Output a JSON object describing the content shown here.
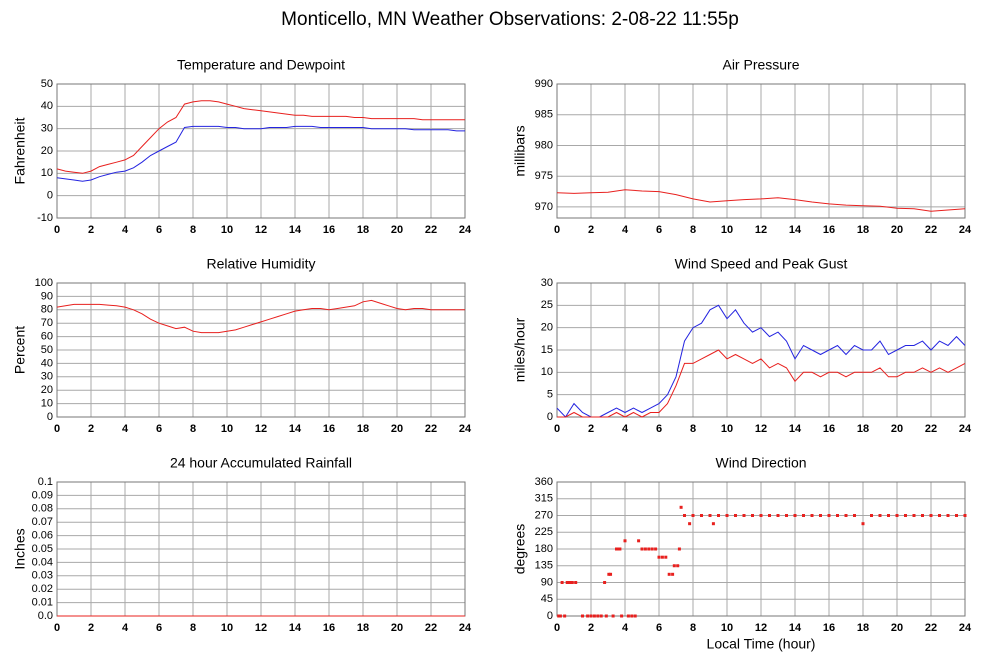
{
  "title": "Monticello, MN Weather Observations: 2-08-22 11:55p",
  "chart_data": [
    {
      "type": "line",
      "title": "Temperature and Dewpoint",
      "ylabel": "Fahrenheit",
      "xlim": [
        0,
        24
      ],
      "xticks": [
        0,
        2,
        4,
        6,
        8,
        10,
        12,
        14,
        16,
        18,
        20,
        22,
        24
      ],
      "ylim": [
        -10,
        50
      ],
      "yticks": [
        -10,
        0,
        10,
        20,
        30,
        40,
        50
      ],
      "grid": true,
      "x": [
        0,
        0.5,
        1,
        1.5,
        2,
        2.5,
        3,
        3.5,
        4,
        4.5,
        5,
        5.5,
        6,
        6.5,
        7,
        7.5,
        8,
        8.5,
        9,
        9.5,
        10,
        10.5,
        11,
        11.5,
        12,
        12.5,
        13,
        13.5,
        14,
        14.5,
        15,
        15.5,
        16,
        16.5,
        17,
        17.5,
        18,
        18.5,
        19,
        19.5,
        20,
        20.5,
        21,
        21.5,
        22,
        22.5,
        23,
        23.5,
        24
      ],
      "series": [
        {
          "color": "#e8201e",
          "values": [
            12,
            11,
            10.5,
            10,
            11,
            13,
            14,
            15,
            16,
            18,
            22,
            26,
            30,
            33,
            35,
            41,
            42,
            42.5,
            42.5,
            42,
            41,
            40,
            39,
            38.5,
            38,
            37.5,
            37,
            36.5,
            36,
            36,
            35.5,
            35.5,
            35.5,
            35.5,
            35.5,
            35,
            35,
            34.5,
            34.5,
            34.5,
            34.5,
            34.5,
            34.5,
            34,
            34,
            34,
            34,
            34,
            34
          ]
        },
        {
          "color": "#2424e0",
          "values": [
            8,
            7.5,
            7,
            6.5,
            7,
            8.5,
            9.5,
            10.5,
            11,
            12.5,
            15,
            18,
            20,
            22,
            24,
            30.5,
            31,
            31,
            31,
            31,
            30.5,
            30.5,
            30,
            30,
            30,
            30.5,
            30.5,
            30.5,
            31,
            31,
            31,
            30.5,
            30.5,
            30.5,
            30.5,
            30.5,
            30.5,
            30,
            30,
            30,
            30,
            30,
            29.5,
            29.5,
            29.5,
            29.5,
            29.5,
            29,
            29
          ]
        }
      ]
    },
    {
      "type": "line",
      "title": "Air Pressure",
      "ylabel": "millibars",
      "xlim": [
        0,
        24
      ],
      "xticks": [
        0,
        2,
        4,
        6,
        8,
        10,
        12,
        14,
        16,
        18,
        20,
        22,
        24
      ],
      "ylim": [
        968.2,
        990
      ],
      "yticks": [
        970,
        975,
        980,
        985,
        990
      ],
      "grid": true,
      "x": [
        0,
        1,
        2,
        3,
        4,
        5,
        6,
        7,
        8,
        9,
        10,
        11,
        12,
        13,
        14,
        15,
        16,
        17,
        18,
        19,
        20,
        21,
        22,
        23,
        24
      ],
      "series": [
        {
          "color": "#e8201e",
          "values": [
            972.3,
            972.2,
            972.3,
            972.4,
            972.8,
            972.6,
            972.5,
            972,
            971.3,
            970.8,
            971,
            971.2,
            971.3,
            971.5,
            971.2,
            970.8,
            970.5,
            970.3,
            970.2,
            970.1,
            969.8,
            969.7,
            969.3,
            969.5,
            969.7
          ]
        }
      ]
    },
    {
      "type": "line",
      "title": "Relative Humidity",
      "ylabel": "Percent",
      "xlim": [
        0,
        24
      ],
      "xticks": [
        0,
        2,
        4,
        6,
        8,
        10,
        12,
        14,
        16,
        18,
        20,
        22,
        24
      ],
      "ylim": [
        0,
        100
      ],
      "yticks": [
        0,
        10,
        20,
        30,
        40,
        50,
        60,
        70,
        80,
        90,
        100
      ],
      "grid": true,
      "x": [
        0,
        0.5,
        1,
        1.5,
        2,
        2.5,
        3,
        3.5,
        4,
        4.5,
        5,
        5.5,
        6,
        6.5,
        7,
        7.5,
        8,
        8.5,
        9,
        9.5,
        10,
        10.5,
        11,
        11.5,
        12,
        12.5,
        13,
        13.5,
        14,
        14.5,
        15,
        15.5,
        16,
        16.5,
        17,
        17.5,
        18,
        18.5,
        19,
        19.5,
        20,
        20.5,
        21,
        21.5,
        22,
        22.5,
        23,
        23.5,
        24
      ],
      "series": [
        {
          "color": "#e8201e",
          "values": [
            82,
            83,
            84,
            84,
            84,
            84,
            83.5,
            83,
            82,
            80,
            77,
            73,
            70,
            68,
            66,
            67,
            64,
            63,
            63,
            63,
            64,
            65,
            67,
            69,
            71,
            73,
            75,
            77,
            79,
            80,
            81,
            81,
            80,
            81,
            82,
            83,
            86,
            87,
            85,
            83,
            81,
            80,
            81,
            81,
            80,
            80,
            80,
            80,
            80
          ]
        }
      ]
    },
    {
      "type": "line",
      "title": "Wind Speed and Peak Gust",
      "ylabel": "miles/hour",
      "xlim": [
        0,
        24
      ],
      "xticks": [
        0,
        2,
        4,
        6,
        8,
        10,
        12,
        14,
        16,
        18,
        20,
        22,
        24
      ],
      "ylim": [
        0,
        30
      ],
      "yticks": [
        0,
        5,
        10,
        15,
        20,
        25,
        30
      ],
      "grid": true,
      "x": [
        0,
        0.5,
        1,
        1.5,
        2,
        2.5,
        3,
        3.5,
        4,
        4.5,
        5,
        5.5,
        6,
        6.5,
        7,
        7.5,
        8,
        8.5,
        9,
        9.5,
        10,
        10.5,
        11,
        11.5,
        12,
        12.5,
        13,
        13.5,
        14,
        14.5,
        15,
        15.5,
        16,
        16.5,
        17,
        17.5,
        18,
        18.5,
        19,
        19.5,
        20,
        20.5,
        21,
        21.5,
        22,
        22.5,
        23,
        23.5,
        24
      ],
      "series": [
        {
          "color": "#2424e0",
          "values": [
            2,
            0,
            3,
            1,
            0,
            0,
            1,
            2,
            1,
            2,
            1,
            2,
            3,
            5,
            9,
            17,
            20,
            21,
            24,
            25,
            22,
            24,
            21,
            19,
            20,
            18,
            19,
            17,
            13,
            16,
            15,
            14,
            15,
            16,
            14,
            16,
            15,
            15,
            17,
            14,
            15,
            16,
            16,
            17,
            15,
            17,
            16,
            18,
            16
          ]
        },
        {
          "color": "#e8201e",
          "values": [
            0,
            0,
            1,
            0,
            0,
            0,
            0,
            1,
            0,
            1,
            0,
            1,
            1,
            3,
            7,
            12,
            12,
            13,
            14,
            15,
            13,
            14,
            13,
            12,
            13,
            11,
            12,
            11,
            8,
            10,
            10,
            9,
            10,
            10,
            9,
            10,
            10,
            10,
            11,
            9,
            9,
            10,
            10,
            11,
            10,
            11,
            10,
            11,
            12
          ]
        }
      ]
    },
    {
      "type": "line",
      "title": "24 hour Accumulated Rainfall",
      "ylabel": "Inches",
      "xlim": [
        0,
        24
      ],
      "xticks": [
        0,
        2,
        4,
        6,
        8,
        10,
        12,
        14,
        16,
        18,
        20,
        22,
        24
      ],
      "ylim": [
        0,
        0.1
      ],
      "yticks": [
        {
          "value": 0,
          "label": "0.0"
        },
        0.01,
        0.02,
        0.03,
        0.04,
        0.05,
        0.06,
        0.07,
        0.08,
        0.09,
        0.1
      ],
      "grid": true,
      "x": [
        0,
        24
      ],
      "series": [
        {
          "color": "#e8201e",
          "values": [
            0,
            0
          ]
        }
      ]
    },
    {
      "type": "scatter",
      "title": "Wind Direction",
      "ylabel": "degrees",
      "xlabel": "Local Time (hour)",
      "xlim": [
        0,
        24
      ],
      "xticks": [
        0,
        2,
        4,
        6,
        8,
        10,
        12,
        14,
        16,
        18,
        20,
        22,
        24
      ],
      "ylim": [
        0,
        360
      ],
      "yticks": [
        0,
        45,
        90,
        135,
        180,
        225,
        270,
        315,
        360
      ],
      "grid": true,
      "x": [
        0.1,
        0.2,
        0.3,
        0.45,
        0.6,
        0.75,
        0.9,
        1.1,
        1.5,
        1.8,
        2,
        2.2,
        2.4,
        2.6,
        2.8,
        2.9,
        3.05,
        3.15,
        3.3,
        3.5,
        3.6,
        3.7,
        3.8,
        4,
        4.2,
        4.4,
        4.6,
        4.8,
        5,
        5.2,
        5.4,
        5.6,
        5.8,
        6,
        6.2,
        6.4,
        6.6,
        6.8,
        6.9,
        7.1,
        7.2,
        7.3,
        7.5,
        7.8,
        8,
        8.5,
        9,
        9.2,
        9.5,
        10,
        10.5,
        11,
        11.5,
        12,
        12.5,
        13,
        13.5,
        14,
        14.5,
        15,
        15.5,
        16,
        16.5,
        17,
        17.5,
        18,
        18.5,
        19,
        19.5,
        20,
        20.5,
        21,
        21.5,
        22,
        22.5,
        23,
        23.5,
        24
      ],
      "series": [
        {
          "color": "#e8201e",
          "values": [
            0,
            0,
            90,
            0,
            90,
            90,
            90,
            90,
            0,
            0,
            0,
            0,
            0,
            0,
            90,
            0,
            112,
            112,
            0,
            180,
            180,
            180,
            0,
            202,
            0,
            0,
            0,
            202,
            180,
            180,
            180,
            180,
            180,
            158,
            158,
            158,
            112,
            112,
            135,
            135,
            180,
            292,
            270,
            248,
            270,
            270,
            270,
            248,
            270,
            270,
            270,
            270,
            270,
            270,
            270,
            270,
            270,
            270,
            270,
            270,
            270,
            270,
            270,
            270,
            270,
            248,
            270,
            270,
            270,
            270,
            270,
            270,
            270,
            270,
            270,
            270,
            270,
            270
          ]
        }
      ]
    }
  ]
}
